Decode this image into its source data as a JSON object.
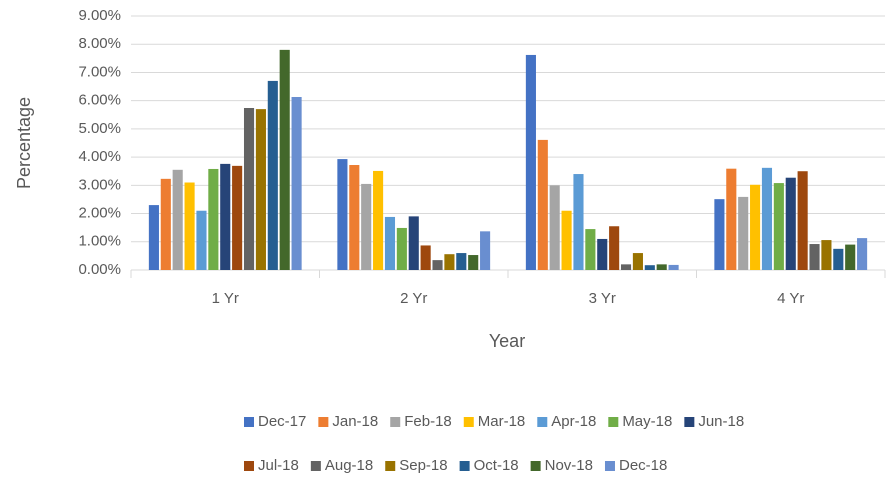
{
  "chart_data": {
    "type": "bar",
    "xlabel": "Year",
    "ylabel": "Percentage",
    "categories": [
      "1 Yr",
      "2 Yr",
      "3 Yr",
      "4 Yr"
    ],
    "ylim": [
      0,
      9
    ],
    "yticks": [
      {
        "value": 0,
        "label": "0.00%"
      },
      {
        "value": 1,
        "label": "1.00%"
      },
      {
        "value": 2,
        "label": "2.00%"
      },
      {
        "value": 3,
        "label": "3.00%"
      },
      {
        "value": 4,
        "label": "4.00%"
      },
      {
        "value": 5,
        "label": "5.00%"
      },
      {
        "value": 6,
        "label": "6.00%"
      },
      {
        "value": 7,
        "label": "7.00%"
      },
      {
        "value": 8,
        "label": "8.00%"
      },
      {
        "value": 9,
        "label": "9.00%"
      }
    ],
    "grid": true,
    "legend": "bottom",
    "series": [
      {
        "name": "Dec-17",
        "color": "#4472c4",
        "values": [
          2.3,
          3.93,
          7.62,
          2.51
        ]
      },
      {
        "name": "Jan-18",
        "color": "#ed7d31",
        "values": [
          3.23,
          3.72,
          4.61,
          3.59
        ]
      },
      {
        "name": "Feb-18",
        "color": "#a5a5a5",
        "values": [
          3.55,
          3.05,
          3.0,
          2.59
        ]
      },
      {
        "name": "Mar-18",
        "color": "#ffc000",
        "values": [
          3.1,
          3.51,
          2.1,
          3.02
        ]
      },
      {
        "name": "Apr-18",
        "color": "#5b9bd5",
        "values": [
          2.1,
          1.88,
          3.4,
          3.62
        ]
      },
      {
        "name": "May-18",
        "color": "#70ad47",
        "values": [
          3.58,
          1.49,
          1.45,
          3.08
        ]
      },
      {
        "name": "Jun-18",
        "color": "#264478",
        "values": [
          3.76,
          1.9,
          1.1,
          3.27
        ]
      },
      {
        "name": "Jul-18",
        "color": "#9e480e",
        "values": [
          3.69,
          0.87,
          1.55,
          3.5
        ]
      },
      {
        "name": "Aug-18",
        "color": "#636363",
        "values": [
          5.74,
          0.35,
          0.2,
          0.92
        ]
      },
      {
        "name": "Sep-18",
        "color": "#997300",
        "values": [
          5.7,
          0.56,
          0.6,
          1.06
        ]
      },
      {
        "name": "Oct-18",
        "color": "#255e91",
        "values": [
          6.7,
          0.6,
          0.17,
          0.75
        ]
      },
      {
        "name": "Nov-18",
        "color": "#43682b",
        "values": [
          7.8,
          0.53,
          0.2,
          0.9
        ]
      },
      {
        "name": "Dec-18",
        "color": "#698ed0",
        "values": [
          6.13,
          1.37,
          0.18,
          1.13
        ]
      }
    ]
  }
}
